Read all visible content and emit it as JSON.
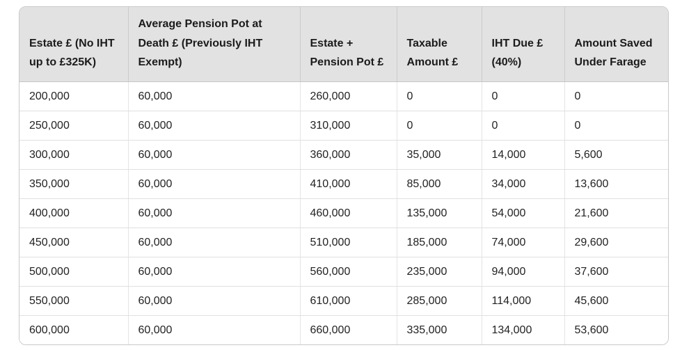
{
  "page": {
    "background_color": "#ffffff"
  },
  "colors": {
    "header_background": "#e2e2e2",
    "header_text": "#1b1b1b",
    "body_text": "#222222",
    "outer_border": "#c9c9c9",
    "header_column_divider": "#cbcbcb",
    "header_bottom_divider": "#c6c6c6",
    "row_divider": "#e0e0e0",
    "column_divider": "#e4e4e4"
  },
  "table": {
    "columns": [
      "Estate £ (No IHT up to £325K)",
      "Average Pension Pot at Death £ (Previously IHT Exempt)",
      "Estate + Pension Pot £",
      "Taxable Amount £",
      "IHT Due £ (40%)",
      "Amount Saved Under Farage"
    ],
    "rows": [
      [
        "200,000",
        "60,000",
        "260,000",
        "0",
        "0",
        "0"
      ],
      [
        "250,000",
        "60,000",
        "310,000",
        "0",
        "0",
        "0"
      ],
      [
        "300,000",
        "60,000",
        "360,000",
        "35,000",
        "14,000",
        "5,600"
      ],
      [
        "350,000",
        "60,000",
        "410,000",
        "85,000",
        "34,000",
        "13,600"
      ],
      [
        "400,000",
        "60,000",
        "460,000",
        "135,000",
        "54,000",
        "21,600"
      ],
      [
        "450,000",
        "60,000",
        "510,000",
        "185,000",
        "74,000",
        "29,600"
      ],
      [
        "500,000",
        "60,000",
        "560,000",
        "235,000",
        "94,000",
        "37,600"
      ],
      [
        "550,000",
        "60,000",
        "610,000",
        "285,000",
        "114,000",
        "45,600"
      ],
      [
        "600,000",
        "60,000",
        "660,000",
        "335,000",
        "134,000",
        "53,600"
      ]
    ]
  }
}
